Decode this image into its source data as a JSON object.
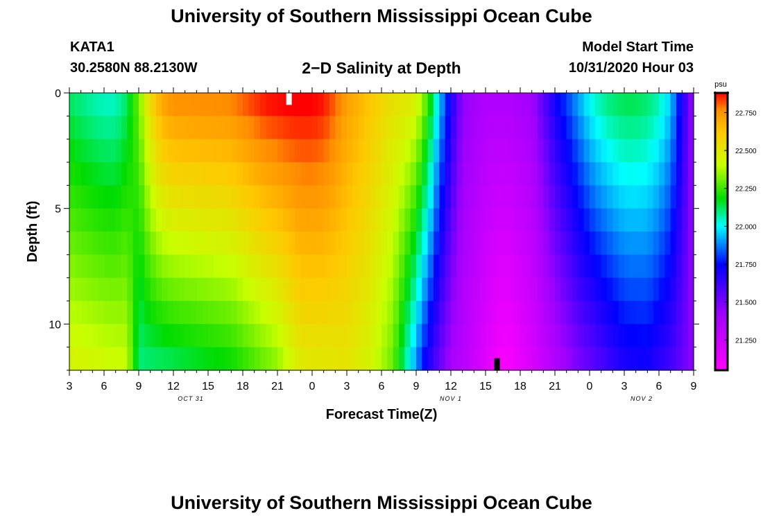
{
  "header": {
    "title": "University of Southern Mississippi Ocean Cube",
    "station_id": "KATA1",
    "station_coords": "30.2580N 88.2130W",
    "plot_title": "2−D Salinity at Depth",
    "start_label": "Model Start Time",
    "start_value": "10/31/2020 Hour 03"
  },
  "footer": {
    "title": "University of Southern Mississippi Ocean Cube"
  },
  "chart_data": {
    "type": "heatmap",
    "title": "2-D Salinity at Depth",
    "xlabel": "Forecast Time(Z)",
    "ylabel": "Depth (ft)",
    "colorbar_label": "psu",
    "colorbar_ticks": [
      "22.750",
      "22.500",
      "22.250",
      "22.000",
      "21.750",
      "21.500",
      "21.250"
    ],
    "colorbar_tick_values": [
      22.75,
      22.5,
      22.25,
      22.0,
      21.75,
      21.5,
      21.25
    ],
    "value_range": [
      21.05,
      22.88
    ],
    "x_range_hours": [
      0,
      54
    ],
    "x_ticks": [
      "3",
      "6",
      "9",
      "12",
      "15",
      "18",
      "21",
      "0",
      "3",
      "6",
      "9",
      "12",
      "15",
      "18",
      "21",
      "0",
      "3",
      "6",
      "9"
    ],
    "x_tick_hours": [
      0,
      3,
      6,
      9,
      12,
      15,
      18,
      21,
      24,
      27,
      30,
      33,
      36,
      39,
      42,
      45,
      48,
      51,
      54
    ],
    "date_labels": [
      {
        "text": "OCT 31",
        "hour": 10.5
      },
      {
        "text": "NOV 1",
        "hour": 33
      },
      {
        "text": "NOV 2",
        "hour": 49.5
      }
    ],
    "y_ticks": [
      "0",
      "5",
      "10"
    ],
    "y_tick_values": [
      0,
      5,
      10
    ],
    "y_range_ft": [
      0,
      12
    ],
    "layer_depths_ft": [
      0.5,
      1.5,
      2.5,
      3.5,
      4.5,
      5.5,
      6.5,
      7.5,
      8.5,
      9.5,
      10.5,
      11.5
    ],
    "surface_profile": {
      "hours": [
        0,
        2,
        3,
        3.5,
        4,
        5,
        6,
        7,
        8,
        9,
        12,
        14,
        15,
        17,
        19,
        21,
        22,
        23,
        24,
        25,
        26,
        27,
        28,
        29,
        30,
        30.5,
        31,
        32,
        34,
        36,
        38,
        40,
        41,
        42,
        43,
        44,
        45,
        46,
        47,
        48,
        49,
        50,
        51,
        52,
        53,
        54
      ],
      "psu": [
        22.12,
        22.07,
        22.05,
        22.05,
        22.05,
        22.12,
        22.3,
        22.55,
        22.7,
        22.75,
        22.76,
        22.77,
        22.8,
        22.86,
        22.88,
        22.88,
        22.86,
        22.8,
        22.72,
        22.68,
        22.62,
        22.57,
        22.52,
        22.5,
        22.45,
        22.35,
        22.25,
        21.95,
        21.45,
        21.35,
        21.35,
        21.4,
        21.55,
        21.7,
        21.8,
        21.9,
        22.0,
        22.06,
        22.1,
        22.12,
        22.12,
        22.1,
        22.05,
        21.95,
        21.7,
        21.4
      ]
    },
    "bottom_profile": {
      "hours": [
        0,
        5,
        6,
        10,
        14,
        18,
        20,
        24,
        26,
        28,
        29,
        30,
        31,
        33,
        35,
        37,
        38,
        40,
        42,
        44,
        46,
        48,
        50,
        52,
        54
      ],
      "psu": [
        22.45,
        22.4,
        22.1,
        22.15,
        22.2,
        22.35,
        22.5,
        22.52,
        22.45,
        22.3,
        22.1,
        21.9,
        21.7,
        21.4,
        21.25,
        21.1,
        21.08,
        21.2,
        21.35,
        21.5,
        21.6,
        21.7,
        21.72,
        21.62,
        21.45
      ]
    },
    "markers": [
      {
        "name": "surface-marker",
        "hour": 19,
        "depth_ft": 0.25,
        "color": "#ffffff"
      },
      {
        "name": "bottom-marker",
        "hour": 37,
        "depth_ft": 11.75,
        "color": "#000000"
      }
    ]
  }
}
